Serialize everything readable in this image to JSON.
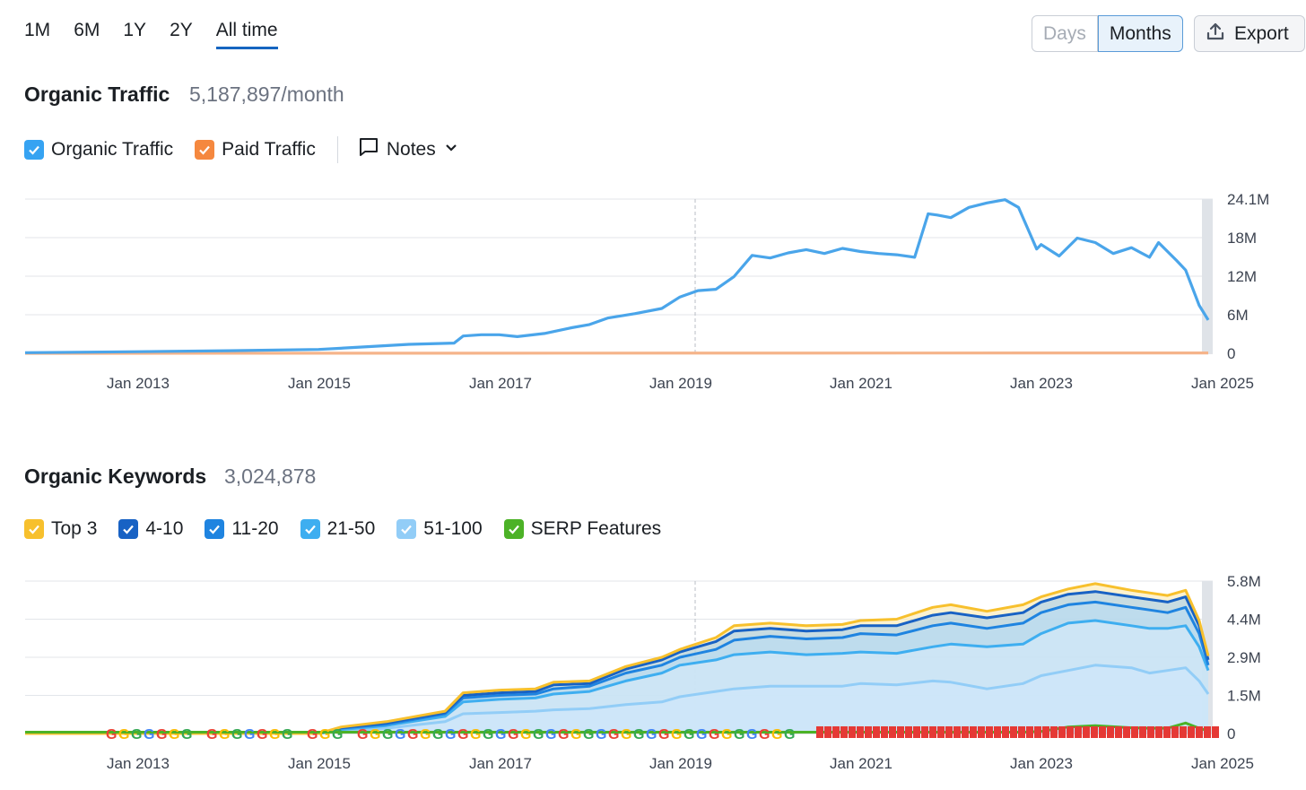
{
  "range_tabs": [
    "1M",
    "6M",
    "1Y",
    "2Y",
    "All time"
  ],
  "active_range": "All time",
  "granularity": {
    "days": "Days",
    "months": "Months",
    "selected": "Months"
  },
  "export_label": "Export",
  "organic_traffic": {
    "title": "Organic Traffic",
    "value": "5,187,897/month",
    "legend": [
      {
        "label": "Organic Traffic",
        "color": "#36a3f2",
        "checked": true
      },
      {
        "label": "Paid Traffic",
        "color": "#f5883f",
        "checked": true
      }
    ],
    "notes_label": "Notes"
  },
  "organic_keywords": {
    "title": "Organic Keywords",
    "value": "3,024,878",
    "legend": [
      {
        "label": "Top 3",
        "color": "#f7c02d",
        "checked": true
      },
      {
        "label": "4-10",
        "color": "#1862c4",
        "checked": true
      },
      {
        "label": "11-20",
        "color": "#1f84e0",
        "checked": true
      },
      {
        "label": "21-50",
        "color": "#3eaef0",
        "checked": true
      },
      {
        "label": "51-100",
        "color": "#92cdf7",
        "checked": true
      },
      {
        "label": "SERP Features",
        "color": "#4cb227",
        "checked": true
      }
    ]
  },
  "chart_data": [
    {
      "type": "line",
      "title": "Organic Traffic",
      "x_ticks": [
        "Jan 2013",
        "Jan 2015",
        "Jan 2017",
        "Jan 2019",
        "Jan 2021",
        "Jan 2023",
        "Jan 2025"
      ],
      "y_ticks": [
        "24.1M",
        "18M",
        "12M",
        "6M",
        "0"
      ],
      "ylim": [
        0,
        24.1
      ],
      "xlim": [
        2011.75,
        2024.9
      ],
      "series": [
        {
          "name": "Organic Traffic",
          "color": "#4aa5ea",
          "x": [
            2011.75,
            2013.0,
            2014.0,
            2015.0,
            2015.5,
            2016.0,
            2016.5,
            2016.6,
            2016.8,
            2017.0,
            2017.2,
            2017.5,
            2017.8,
            2018.0,
            2018.2,
            2018.5,
            2018.8,
            2019.0,
            2019.2,
            2019.4,
            2019.6,
            2019.8,
            2020.0,
            2020.2,
            2020.4,
            2020.6,
            2020.8,
            2021.0,
            2021.2,
            2021.4,
            2021.6,
            2021.75,
            2021.85,
            2022.0,
            2022.2,
            2022.4,
            2022.6,
            2022.75,
            2022.95,
            2023.0,
            2023.2,
            2023.4,
            2023.6,
            2023.8,
            2024.0,
            2024.2,
            2024.3,
            2024.5,
            2024.6,
            2024.75,
            2024.85
          ],
          "y": [
            0.1,
            0.25,
            0.4,
            0.6,
            1.0,
            1.4,
            1.6,
            2.7,
            2.9,
            2.9,
            2.6,
            3.1,
            4.0,
            4.5,
            5.5,
            6.2,
            7.0,
            8.8,
            9.8,
            10.0,
            12.0,
            15.3,
            14.9,
            15.7,
            16.2,
            15.6,
            16.4,
            15.9,
            15.6,
            15.4,
            15.0,
            21.8,
            21.6,
            21.2,
            22.8,
            23.5,
            24.0,
            22.8,
            16.3,
            17.0,
            15.2,
            18.0,
            17.3,
            15.6,
            16.5,
            15.0,
            17.3,
            14.5,
            13.0,
            7.5,
            5.2
          ]
        },
        {
          "name": "Paid Traffic",
          "color": "#f5b48a",
          "x": [
            2011.75,
            2024.85
          ],
          "y": [
            0.0,
            0.05
          ]
        }
      ]
    },
    {
      "type": "area",
      "title": "Organic Keywords",
      "x_ticks": [
        "Jan 2013",
        "Jan 2015",
        "Jan 2017",
        "Jan 2019",
        "Jan 2021",
        "Jan 2023",
        "Jan 2025"
      ],
      "y_ticks": [
        "5.8M",
        "4.4M",
        "2.9M",
        "1.5M",
        "0"
      ],
      "ylim": [
        0,
        5.8
      ],
      "xlim": [
        2011.75,
        2024.9
      ],
      "x": [
        2011.75,
        2013.0,
        2014.0,
        2015.0,
        2015.25,
        2015.75,
        2016.4,
        2016.6,
        2017.0,
        2017.4,
        2017.6,
        2018.0,
        2018.4,
        2018.8,
        2019.0,
        2019.4,
        2019.6,
        2020.0,
        2020.4,
        2020.8,
        2021.0,
        2021.4,
        2021.8,
        2022.0,
        2022.4,
        2022.8,
        2023.0,
        2023.3,
        2023.6,
        2024.0,
        2024.2,
        2024.4,
        2024.6,
        2024.75,
        2024.85
      ],
      "series": [
        {
          "name": "51-100",
          "color": "#92cdf7",
          "values": [
            0.0,
            0.0,
            0.0,
            0.0,
            0.1,
            0.2,
            0.45,
            0.75,
            0.8,
            0.85,
            0.9,
            0.95,
            1.1,
            1.2,
            1.4,
            1.6,
            1.7,
            1.8,
            1.8,
            1.8,
            1.9,
            1.85,
            2.0,
            1.95,
            1.7,
            1.9,
            2.2,
            2.4,
            2.6,
            2.5,
            2.3,
            2.4,
            2.5,
            2.0,
            1.5
          ]
        },
        {
          "name": "21-50",
          "color": "#3eaef0",
          "values": [
            0.0,
            0.0,
            0.0,
            0.0,
            0.15,
            0.3,
            0.65,
            1.2,
            1.3,
            1.35,
            1.5,
            1.6,
            2.0,
            2.3,
            2.6,
            2.8,
            3.0,
            3.1,
            3.0,
            3.05,
            3.1,
            3.05,
            3.3,
            3.4,
            3.3,
            3.4,
            3.8,
            4.2,
            4.3,
            4.1,
            4.0,
            4.0,
            4.1,
            3.3,
            2.4
          ]
        },
        {
          "name": "11-20",
          "color": "#1f84e0",
          "values": [
            0.0,
            0.0,
            0.0,
            0.0,
            0.2,
            0.35,
            0.75,
            1.35,
            1.45,
            1.5,
            1.7,
            1.8,
            2.3,
            2.6,
            2.9,
            3.2,
            3.55,
            3.7,
            3.6,
            3.65,
            3.8,
            3.75,
            4.1,
            4.2,
            4.0,
            4.2,
            4.6,
            4.9,
            5.0,
            4.8,
            4.7,
            4.6,
            4.8,
            3.8,
            2.6
          ]
        },
        {
          "name": "4-10",
          "color": "#1862c4",
          "values": [
            0.0,
            0.0,
            0.0,
            0.0,
            0.22,
            0.4,
            0.8,
            1.45,
            1.55,
            1.6,
            1.85,
            1.9,
            2.45,
            2.8,
            3.1,
            3.5,
            3.9,
            4.0,
            3.9,
            3.95,
            4.1,
            4.1,
            4.5,
            4.6,
            4.4,
            4.6,
            5.0,
            5.3,
            5.4,
            5.2,
            5.1,
            5.0,
            5.2,
            4.1,
            2.8
          ]
        },
        {
          "name": "Top 3",
          "color": "#f7c02d",
          "values": [
            0.0,
            0.0,
            0.0,
            0.0,
            0.25,
            0.45,
            0.85,
            1.55,
            1.65,
            1.7,
            1.95,
            2.0,
            2.55,
            2.9,
            3.2,
            3.65,
            4.1,
            4.2,
            4.1,
            4.15,
            4.3,
            4.35,
            4.8,
            4.9,
            4.65,
            4.9,
            5.2,
            5.5,
            5.7,
            5.45,
            5.35,
            5.25,
            5.45,
            4.3,
            2.95
          ]
        },
        {
          "name": "SERP Features",
          "color": "#4cb227",
          "values": [
            0.05,
            0.05,
            0.05,
            0.05,
            0.05,
            0.05,
            0.05,
            0.05,
            0.05,
            0.05,
            0.05,
            0.05,
            0.05,
            0.05,
            0.05,
            0.05,
            0.05,
            0.05,
            0.05,
            0.05,
            0.05,
            0.05,
            0.05,
            0.05,
            0.05,
            0.05,
            0.08,
            0.25,
            0.3,
            0.22,
            0.2,
            0.2,
            0.4,
            0.2,
            0.1
          ]
        }
      ]
    }
  ]
}
